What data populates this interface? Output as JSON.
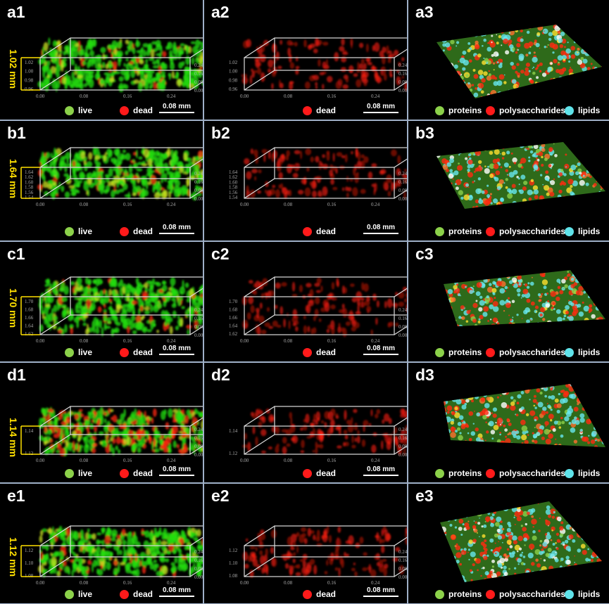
{
  "rows": [
    {
      "id": "a",
      "height_label": "1.02 mm",
      "z_ticks": [
        "1.02",
        "1.00",
        "0.98",
        "0.96"
      ],
      "fill": 0.5
    },
    {
      "id": "b",
      "height_label": "1.64 mm",
      "z_ticks": [
        "1.64",
        "1.62",
        "1.60",
        "1.58",
        "1.56",
        "1.54"
      ],
      "fill": 0.9
    },
    {
      "id": "c",
      "height_label": "1.70 mm",
      "z_ticks": [
        "1.70",
        "1.68",
        "1.66",
        "1.64",
        "1.62"
      ],
      "fill": 0.8
    },
    {
      "id": "d",
      "height_label": "1.14 mm",
      "z_ticks": [
        "1.14",
        "1.12"
      ],
      "fill": 0.6
    },
    {
      "id": "e",
      "height_label": "1.12 mm",
      "z_ticks": [
        "1.12",
        "1.10",
        "1.08"
      ],
      "fill": 0.6
    }
  ],
  "x_ticks": [
    "0.00",
    "0.08",
    "0.16",
    "0.24"
  ],
  "y_ticks": [
    "0.24",
    "0.16",
    "0.08",
    "0.00"
  ],
  "scale_bar": "0.08 mm",
  "legend_col1": [
    {
      "label": "live",
      "color": "#8cd14a"
    },
    {
      "label": "dead",
      "color": "#ff1a1a"
    }
  ],
  "legend_col2": [
    {
      "label": "dead",
      "color": "#ff1a1a"
    }
  ],
  "legend_col3": [
    {
      "label": "proteins",
      "color": "#8cd14a"
    },
    {
      "label": "polysaccharides",
      "color": "#ff1a1a"
    },
    {
      "label": "lipids",
      "color": "#5fe3ea"
    }
  ],
  "colors": {
    "live": "#22dd11",
    "dead": "#ff2010",
    "lipids": "#66e6ee",
    "axis_yellow": "#ffe000",
    "border": "#9fb0c8"
  }
}
